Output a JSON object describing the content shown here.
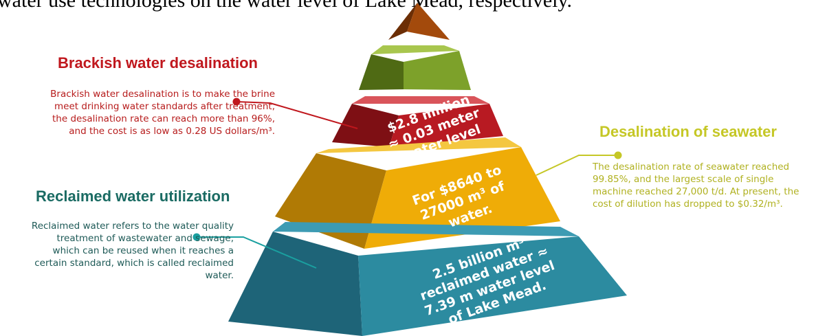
{
  "top_text": "water use technologies on the water level of Lake Mead, respectively.",
  "callouts": {
    "brackish": {
      "title": "Brackish water desalination",
      "lines": [
        "Brackish water desalination is to make the brine",
        "meet drinking water standards after treatment,",
        "the desalination rate can reach more than 96%,",
        "and the cost is as low as 0.28 US dollars/m³."
      ]
    },
    "reclaimed": {
      "title": "Reclaimed water utilization",
      "lines": [
        "Reclaimed water refers to the water quality",
        "treatment of wastewater and sewage,",
        "which can be reused when it reaches a",
        "certain standard, which is called reclaimed",
        "water."
      ]
    },
    "seawater": {
      "title": "Desalination of seawater",
      "lines": [
        "The desalination rate of seawater reached",
        "99.85%, and the largest scale of single",
        "machine reached 27,000 t/d. At present, the",
        "cost of dilution has dropped to $0.32/m³."
      ]
    }
  },
  "pyramid": {
    "layer_red": [
      "$2.8 million",
      "≈ 0.03 meter",
      "water level"
    ],
    "layer_yellow": [
      "For $8640 to",
      "27000 m³ of",
      "water."
    ],
    "layer_teal": [
      "2.5 billion m³",
      "reclaimed water ≈",
      "7.39 m water level",
      "of Lake Mead."
    ]
  },
  "colors": {
    "brown": "#a34a0c",
    "green": "#7da12a",
    "red": "#b81a22",
    "yellow": "#efac07",
    "teal": "#2c8ba0",
    "brackish_accent": "#c0171d",
    "reclaimed_accent": "#1aa0a0",
    "seawater_accent": "#c5c726"
  }
}
